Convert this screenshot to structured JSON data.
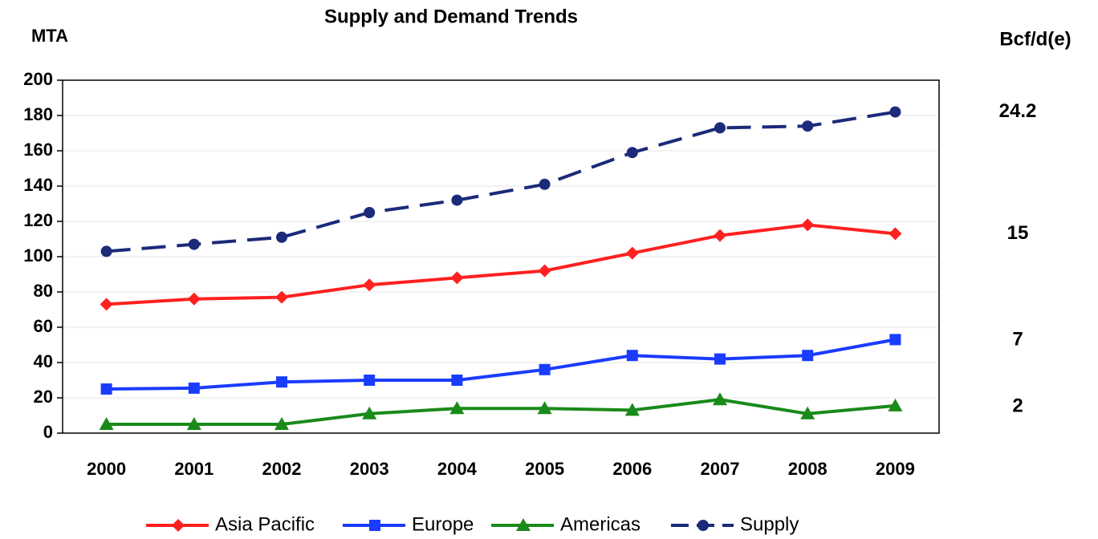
{
  "chart_data": {
    "type": "line",
    "title": "Supply and Demand Trends",
    "y_label": "MTA",
    "y2_label": "Bcf/d(e)",
    "categories": [
      "2000",
      "2001",
      "2002",
      "2003",
      "2004",
      "2005",
      "2006",
      "2007",
      "2008",
      "2009"
    ],
    "series": [
      {
        "name": "Asia Pacific",
        "color": "#ff2020",
        "marker": "diamond",
        "dashed": false,
        "values": [
          73,
          76,
          77,
          84,
          88,
          92,
          102,
          112,
          118,
          113
        ]
      },
      {
        "name": "Europe",
        "color": "#1a3cff",
        "marker": "square",
        "dashed": false,
        "values": [
          25,
          25.5,
          29,
          30,
          30,
          36,
          44,
          42,
          44,
          53
        ]
      },
      {
        "name": "Americas",
        "color": "#1a8a1a",
        "marker": "triangle",
        "dashed": false,
        "values": [
          5,
          5,
          5,
          11,
          14,
          14,
          13,
          19,
          11,
          15.5
        ]
      },
      {
        "name": "Supply",
        "color": "#1c2a7a",
        "marker": "circle",
        "dashed": true,
        "values": [
          103,
          107,
          111,
          125,
          132,
          141,
          159,
          173,
          174,
          182
        ]
      }
    ],
    "ylim": [
      0,
      200
    ],
    "yticks": [
      0,
      20,
      40,
      60,
      80,
      100,
      120,
      140,
      160,
      180,
      200
    ],
    "y2lim": [
      0,
      26.6
    ],
    "y2ticks": [
      2,
      7,
      15,
      24.2
    ],
    "grid": true,
    "legend": "bottom"
  }
}
